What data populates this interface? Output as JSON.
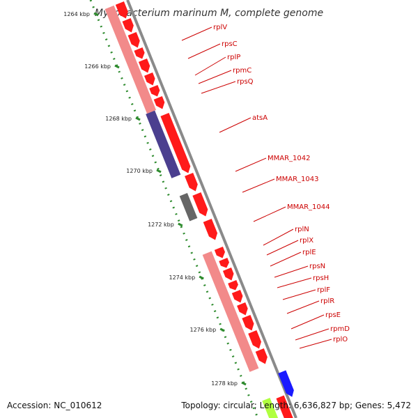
{
  "title": "Mycobacterium marinum M, complete genome",
  "accession": "Accession: NC_010612",
  "summary": "Topology: circular; Length: 6,636,827 bp; Genes: 5,472",
  "colors": {
    "backbone": "#8a8a8a",
    "ruler": "#2e8b2e",
    "gene_red": "#ff1a1a",
    "operon_pink": "#f28a8a",
    "operon_purple": "#4b3f8f",
    "gene_gray": "#666666",
    "gene_blue": "#1a1aff",
    "gene_lime": "#b0ff40",
    "label": "#cc0000"
  },
  "ticks": [
    "1264 kbp",
    "1266 kbp",
    "1268 kbp",
    "1270 kbp",
    "1272 kbp",
    "1274 kbp",
    "1276 kbp",
    "1278 kbp"
  ],
  "genes": [
    "rplV",
    "rpsC",
    "rplP",
    "rpmC",
    "rpsQ",
    "atsA",
    "MMAR_1042",
    "MMAR_1043",
    "MMAR_1044",
    "rplN",
    "rplX",
    "rplE",
    "rpsN",
    "rpsH",
    "rplF",
    "rplR",
    "rpsE",
    "rpmD",
    "rplO"
  ]
}
